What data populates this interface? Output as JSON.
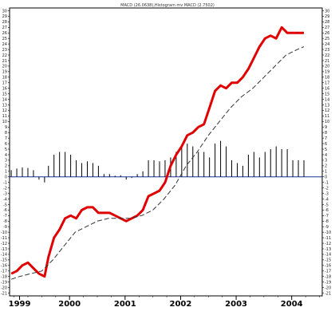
{
  "chart_data": {
    "type": "line",
    "title": "MACD (26.0638),Histogram mv MACD (2.7502)",
    "xlabel": "",
    "ylabel": "",
    "x_range": [
      1998.92,
      2004.55
    ],
    "ylim": [
      -21,
      30
    ],
    "y_ticks": [
      30,
      29,
      28,
      27,
      26,
      25,
      24,
      23,
      22,
      21,
      20,
      19,
      18,
      17,
      16,
      15,
      14,
      13,
      12,
      11,
      10,
      9,
      8,
      7,
      6,
      5,
      4,
      3,
      2,
      1,
      0,
      -1,
      -2,
      -3,
      -4,
      -5,
      -6,
      -7,
      -8,
      -9,
      -10,
      -11,
      -12,
      -13,
      -14,
      -15,
      -16,
      -17,
      -18,
      -19,
      -20,
      -21
    ],
    "x_ticks": [
      {
        "label": "1999",
        "x": 1999.1
      },
      {
        "label": "2000",
        "x": 2000.0
      },
      {
        "label": "2001",
        "x": 2001.0
      },
      {
        "label": "2002",
        "x": 2002.0
      },
      {
        "label": "2003",
        "x": 2003.0
      },
      {
        "label": "2004",
        "x": 2004.0
      }
    ],
    "zero_line": 0,
    "grid": false,
    "colors": {
      "macd": "#e00000",
      "signal": "#333333",
      "histogram": "#000000",
      "zero_line": "#1e2fa0",
      "frame": "#000000"
    },
    "series": [
      {
        "key": "macd",
        "style": "solid",
        "x": [
          1998.95,
          1999.05,
          1999.15,
          1999.25,
          1999.35,
          1999.45,
          1999.55,
          1999.62,
          1999.72,
          1999.82,
          1999.92,
          2000.02,
          2000.12,
          2000.22,
          2000.32,
          2000.42,
          2000.52,
          2000.62,
          2000.72,
          2000.82,
          2000.92,
          2001.02,
          2001.12,
          2001.22,
          2001.32,
          2001.42,
          2001.52,
          2001.62,
          2001.72,
          2001.82,
          2001.92,
          2002.02,
          2002.12,
          2002.22,
          2002.32,
          2002.42,
          2002.52,
          2002.62,
          2002.72,
          2002.82,
          2002.92,
          2003.02,
          2003.12,
          2003.22,
          2003.32,
          2003.42,
          2003.52,
          2003.62,
          2003.72,
          2003.82,
          2003.92,
          2004.02,
          2004.12,
          2004.22
        ],
        "values": [
          -17.5,
          -17.0,
          -16.0,
          -15.5,
          -16.5,
          -17.5,
          -18.0,
          -14.5,
          -11.0,
          -9.5,
          -7.5,
          -7.0,
          -7.5,
          -6.0,
          -5.5,
          -5.5,
          -6.5,
          -6.5,
          -6.5,
          -7.0,
          -7.5,
          -8.0,
          -7.5,
          -7.0,
          -6.0,
          -3.5,
          -3.0,
          -2.5,
          -1.0,
          2.0,
          4.0,
          5.5,
          7.5,
          8.0,
          9.0,
          9.5,
          12.5,
          15.5,
          16.5,
          16.0,
          17.0,
          17.0,
          18.0,
          19.5,
          21.5,
          23.5,
          25.0,
          25.5,
          25.0,
          27.0,
          26.0,
          26.0,
          26.0,
          26.0
        ]
      },
      {
        "key": "signal",
        "style": "dashed",
        "x": [
          1998.95,
          1999.1,
          1999.3,
          1999.5,
          1999.7,
          1999.9,
          2000.1,
          2000.3,
          2000.5,
          2000.7,
          2000.9,
          2001.1,
          2001.3,
          2001.5,
          2001.7,
          2001.9,
          2002.1,
          2002.3,
          2002.5,
          2002.7,
          2002.9,
          2003.1,
          2003.3,
          2003.5,
          2003.7,
          2003.9,
          2004.1,
          2004.22
        ],
        "values": [
          -18.5,
          -18.0,
          -17.5,
          -17.0,
          -15.0,
          -12.5,
          -10.0,
          -9.0,
          -8.0,
          -7.5,
          -7.5,
          -7.5,
          -7.0,
          -6.0,
          -4.0,
          -1.5,
          2.0,
          4.5,
          7.5,
          10.0,
          12.5,
          14.5,
          16.0,
          18.0,
          20.0,
          22.0,
          23.0,
          23.5
        ]
      }
    ],
    "histogram": {
      "x": [
        1998.95,
        1999.05,
        1999.15,
        1999.25,
        1999.35,
        1999.45,
        1999.55,
        1999.62,
        1999.72,
        1999.82,
        1999.92,
        2000.02,
        2000.12,
        2000.22,
        2000.32,
        2000.42,
        2000.52,
        2000.62,
        2000.72,
        2000.82,
        2000.92,
        2001.02,
        2001.12,
        2001.22,
        2001.32,
        2001.42,
        2001.52,
        2001.62,
        2001.72,
        2001.82,
        2001.92,
        2002.02,
        2002.12,
        2002.22,
        2002.32,
        2002.42,
        2002.52,
        2002.62,
        2002.72,
        2002.82,
        2002.92,
        2003.02,
        2003.12,
        2003.22,
        2003.32,
        2003.42,
        2003.52,
        2003.62,
        2003.72,
        2003.82,
        2003.92,
        2004.02,
        2004.12,
        2004.22
      ],
      "values": [
        1.2,
        1.5,
        1.7,
        1.6,
        1.2,
        -0.5,
        -1.0,
        2.0,
        4.0,
        4.5,
        4.5,
        4.0,
        3.0,
        2.5,
        2.8,
        2.5,
        2.0,
        0.5,
        0.5,
        0.2,
        0.3,
        -0.5,
        -0.2,
        0.5,
        1.0,
        3.0,
        3.0,
        2.8,
        3.0,
        3.5,
        4.5,
        5.5,
        6.0,
        5.5,
        4.5,
        4.5,
        3.5,
        6.0,
        6.5,
        5.5,
        3.0,
        2.5,
        2.0,
        4.0,
        4.5,
        3.5,
        4.5,
        5.0,
        5.5,
        5.0,
        5.0,
        3.0,
        3.0,
        3.0
      ]
    }
  }
}
